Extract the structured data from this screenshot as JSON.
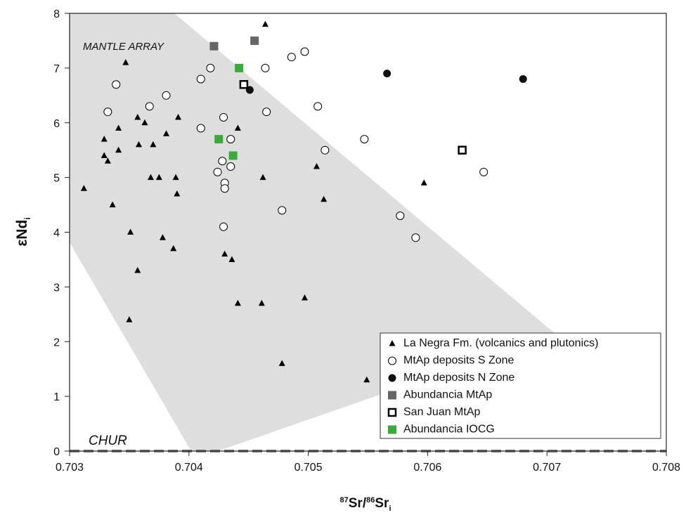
{
  "chart_data": {
    "type": "scatter",
    "ylabel": "εNd",
    "ylabel_sub": "i",
    "xlabel_parts": [
      "87",
      "Sr/",
      "86",
      "Sr",
      "i"
    ],
    "annotations": [
      "MANTLE ARRAY",
      "CHUR"
    ],
    "xlim": [
      0.703,
      0.708
    ],
    "ylim": [
      0,
      8
    ],
    "xticks": [
      0.703,
      0.704,
      0.705,
      0.706,
      0.707,
      0.708
    ],
    "yticks": [
      0,
      1,
      2,
      3,
      4,
      5,
      6,
      7,
      8
    ],
    "legend": "lower right",
    "series": [
      {
        "name": "La Negra Fm. (volcanics and plutonics)",
        "marker": "triangle",
        "color": "#000000",
        "x": [
          0.70312,
          0.70347,
          0.70341,
          0.70329,
          0.70329,
          0.70332,
          0.70341,
          0.70336,
          0.70357,
          0.70363,
          0.70358,
          0.7037,
          0.70381,
          0.70391,
          0.70368,
          0.70375,
          0.70389,
          0.7039,
          0.70351,
          0.70378,
          0.70387,
          0.70357,
          0.7035,
          0.70464,
          0.70441,
          0.70462,
          0.7043,
          0.70436,
          0.70441,
          0.70461,
          0.70497,
          0.70507,
          0.70513,
          0.70478,
          0.70549,
          0.70597
        ],
        "y": [
          4.8,
          7.1,
          5.9,
          5.7,
          5.4,
          5.3,
          5.5,
          4.5,
          6.1,
          6.0,
          5.6,
          5.6,
          5.8,
          6.1,
          5.0,
          5.0,
          5.0,
          4.7,
          4.0,
          3.9,
          3.7,
          3.3,
          2.4,
          7.8,
          5.9,
          5.0,
          3.6,
          3.5,
          2.7,
          2.7,
          2.8,
          5.2,
          4.6,
          1.6,
          1.3,
          4.9
        ]
      },
      {
        "name": "MtAp deposits S Zone",
        "marker": "circle-open",
        "color": "#000000",
        "x": [
          0.70339,
          0.70332,
          0.70367,
          0.70381,
          0.7041,
          0.70418,
          0.7041,
          0.70429,
          0.70435,
          0.70428,
          0.70424,
          0.70435,
          0.7043,
          0.7043,
          0.70429,
          0.70464,
          0.70465,
          0.70486,
          0.70497,
          0.70508,
          0.70514,
          0.70478,
          0.70547,
          0.70577,
          0.7059,
          0.70647
        ],
        "y": [
          6.7,
          6.2,
          6.3,
          6.5,
          6.8,
          7.0,
          5.9,
          6.1,
          5.7,
          5.3,
          5.1,
          5.2,
          4.9,
          4.8,
          4.1,
          7.0,
          6.2,
          7.2,
          7.3,
          6.3,
          5.5,
          4.4,
          5.7,
          4.3,
          3.9,
          5.1
        ]
      },
      {
        "name": "MtAp deposits N Zone",
        "marker": "circle",
        "color": "#111111",
        "x": [
          0.70451,
          0.70566,
          0.7068
        ],
        "y": [
          6.6,
          6.9,
          6.8
        ]
      },
      {
        "name": "Abundancia MtAp",
        "marker": "square",
        "color": "#666666",
        "x": [
          0.70421,
          0.70455
        ],
        "y": [
          7.4,
          7.5
        ]
      },
      {
        "name": "San Juan MtAp",
        "marker": "square-open",
        "color": "#000000",
        "x": [
          0.70446,
          0.70629
        ],
        "y": [
          6.7,
          5.5
        ]
      },
      {
        "name": "Abundancia IOCG",
        "marker": "square",
        "color": "#3aaa3a",
        "x": [
          0.70442,
          0.70425,
          0.70437
        ],
        "y": [
          7.0,
          5.7,
          5.4
        ]
      }
    ]
  }
}
